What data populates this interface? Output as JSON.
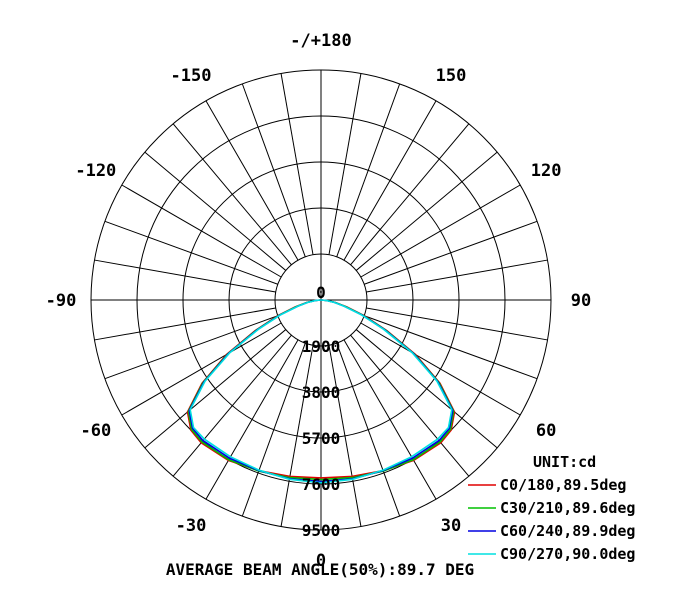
{
  "chart_data": {
    "type": "polar",
    "unit_label": "UNIT:cd",
    "footer": "AVERAGE BEAM ANGLE(50%):89.7 DEG",
    "angle_labels": [
      {
        "angle": 180,
        "text": "-/+180"
      },
      {
        "angle": -150,
        "text": "-150"
      },
      {
        "angle": 150,
        "text": "150"
      },
      {
        "angle": -120,
        "text": "-120"
      },
      {
        "angle": 120,
        "text": "120"
      },
      {
        "angle": -90,
        "text": "-90"
      },
      {
        "angle": 90,
        "text": "90"
      },
      {
        "angle": -60,
        "text": "-60"
      },
      {
        "angle": 60,
        "text": "60"
      },
      {
        "angle": -30,
        "text": "-30"
      },
      {
        "angle": 30,
        "text": "30"
      },
      {
        "angle": 0,
        "text": "0"
      }
    ],
    "rings": [
      1900,
      3800,
      5700,
      7600,
      9500
    ],
    "ring_labels": [
      "0",
      "1900",
      "3800",
      "5700",
      "7600",
      "9500"
    ],
    "rmax": 9500,
    "grid": true,
    "legend_position": "bottom-right",
    "series": [
      {
        "name": "C0/180,89.5deg",
        "color": "#e00000",
        "points": [
          [
            0,
            7350
          ],
          [
            10,
            7400
          ],
          [
            20,
            7500
          ],
          [
            30,
            7650
          ],
          [
            40,
            7700
          ],
          [
            45,
            7600
          ],
          [
            50,
            7200
          ],
          [
            55,
            6000
          ],
          [
            60,
            4500
          ],
          [
            65,
            3000
          ],
          [
            70,
            1900
          ],
          [
            75,
            1100
          ],
          [
            80,
            600
          ],
          [
            85,
            250
          ],
          [
            90,
            0
          ]
        ]
      },
      {
        "name": "C30/210,89.6deg",
        "color": "#00c000",
        "points": [
          [
            0,
            7420
          ],
          [
            10,
            7450
          ],
          [
            20,
            7520
          ],
          [
            30,
            7620
          ],
          [
            40,
            7650
          ],
          [
            45,
            7560
          ],
          [
            50,
            7150
          ],
          [
            55,
            5950
          ],
          [
            60,
            4450
          ],
          [
            65,
            2950
          ],
          [
            70,
            1850
          ],
          [
            75,
            1050
          ],
          [
            80,
            580
          ],
          [
            85,
            240
          ],
          [
            90,
            0
          ]
        ]
      },
      {
        "name": "C60/240,89.9deg",
        "color": "#0000e0",
        "points": [
          [
            0,
            7500
          ],
          [
            10,
            7500
          ],
          [
            20,
            7500
          ],
          [
            30,
            7550
          ],
          [
            40,
            7580
          ],
          [
            45,
            7500
          ],
          [
            50,
            7100
          ],
          [
            55,
            5900
          ],
          [
            60,
            4400
          ],
          [
            65,
            2900
          ],
          [
            70,
            1800
          ],
          [
            75,
            1000
          ],
          [
            80,
            560
          ],
          [
            85,
            230
          ],
          [
            90,
            0
          ]
        ]
      },
      {
        "name": "C90/270,90.0deg",
        "color": "#00e0e0",
        "points": [
          [
            0,
            7550
          ],
          [
            10,
            7520
          ],
          [
            20,
            7480
          ],
          [
            30,
            7480
          ],
          [
            40,
            7500
          ],
          [
            45,
            7450
          ],
          [
            50,
            7050
          ],
          [
            55,
            5850
          ],
          [
            60,
            4350
          ],
          [
            65,
            2850
          ],
          [
            70,
            1750
          ],
          [
            75,
            980
          ],
          [
            80,
            540
          ],
          [
            85,
            220
          ],
          [
            90,
            0
          ]
        ]
      }
    ]
  }
}
